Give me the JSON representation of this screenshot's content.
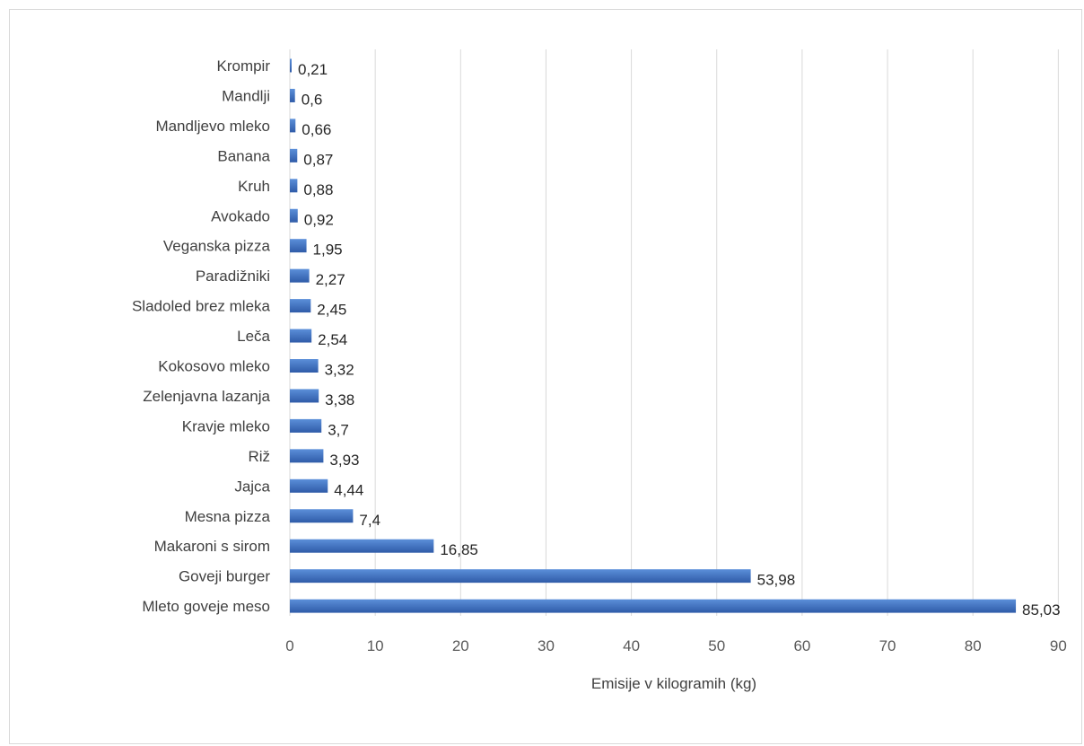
{
  "chart_data": {
    "type": "bar",
    "orientation": "horizontal",
    "categories": [
      "Krompir",
      "Mandlji",
      "Mandljevo mleko",
      "Banana",
      "Kruh",
      "Avokado",
      "Veganska pizza",
      "Paradižniki",
      "Sladoled brez mleka",
      "Leča",
      "Kokosovo mleko",
      "Zelenjavna lazanja",
      "Kravje mleko",
      "Riž",
      "Jajca",
      "Mesna pizza",
      "Makaroni s sirom",
      "Goveji burger",
      "Mleto goveje meso"
    ],
    "values": [
      0.21,
      0.6,
      0.66,
      0.87,
      0.88,
      0.92,
      1.95,
      2.27,
      2.45,
      2.54,
      3.32,
      3.38,
      3.7,
      3.93,
      4.44,
      7.4,
      16.85,
      53.98,
      85.03
    ],
    "value_labels": [
      "0,21",
      "0,6",
      "0,66",
      "0,87",
      "0,88",
      "0,92",
      "1,95",
      "2,27",
      "2,45",
      "2,54",
      "3,32",
      "3,38",
      "3,7",
      "3,93",
      "4,44",
      "7,4",
      "16,85",
      "53,98",
      "85,03"
    ],
    "title": "",
    "xlabel": "Emisije v kilogramih (kg)",
    "ylabel": "",
    "xlim": [
      0,
      90
    ],
    "xticks": [
      0,
      10,
      20,
      30,
      40,
      50,
      60,
      70,
      80,
      90
    ],
    "grid": "vertical",
    "legend": "none",
    "colors": {
      "bar_top": "#5b8fd9",
      "bar_bottom": "#2f5ba8",
      "grid": "#d9d9d9"
    }
  }
}
